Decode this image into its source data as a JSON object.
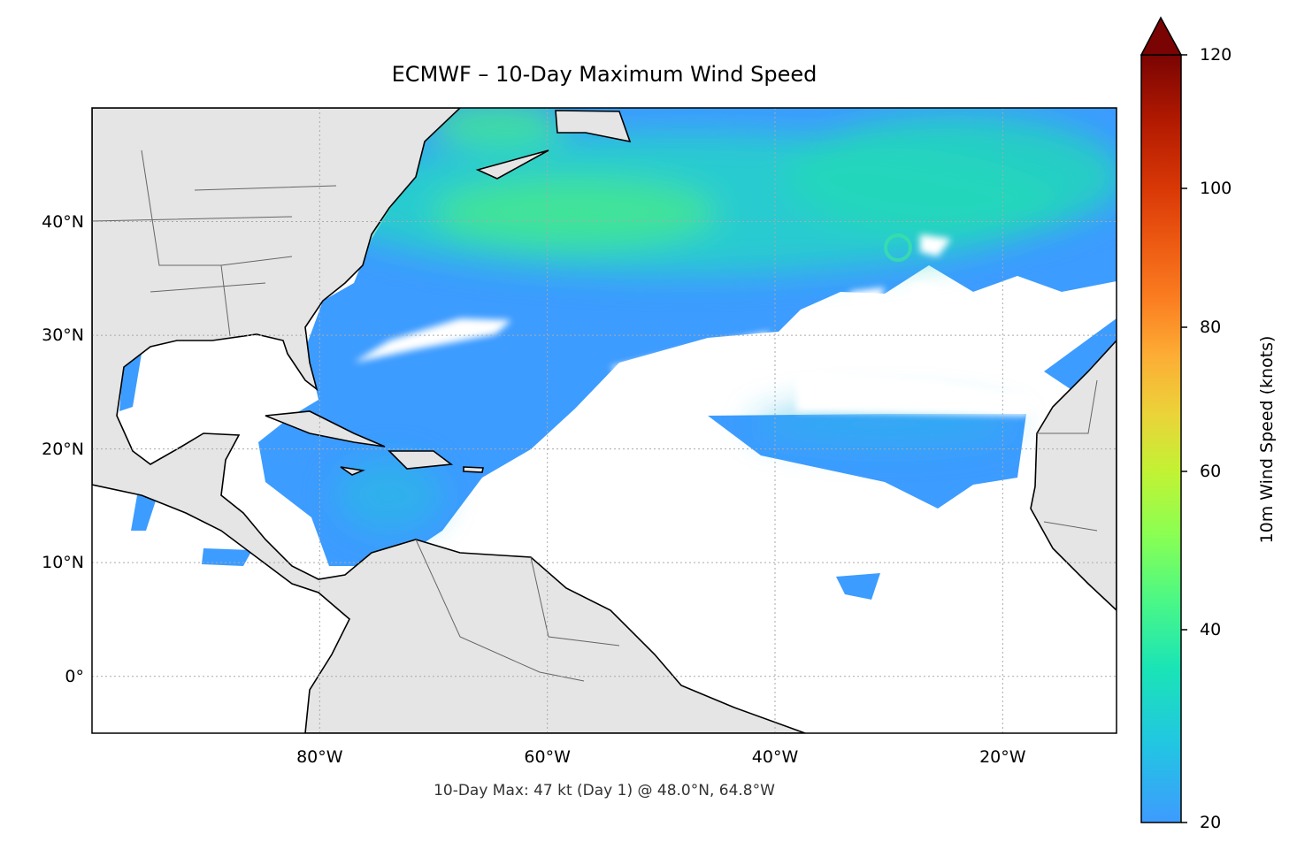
{
  "title": "ECMWF – 10-Day Maximum Wind Speed",
  "footer": "10-Day Max: 47 kt (Day 1) @ 48.0°N, 64.8°W",
  "map": {
    "extent_lon": [
      -100,
      -10
    ],
    "extent_lat": [
      -5,
      50
    ],
    "lat_labels": [
      {
        "lat": 40,
        "label": "40°N"
      },
      {
        "lat": 30,
        "label": "30°N"
      },
      {
        "lat": 20,
        "label": "20°N"
      },
      {
        "lat": 10,
        "label": "10°N"
      },
      {
        "lat": 0,
        "label": "0°"
      }
    ],
    "lon_labels": [
      {
        "lon": -80,
        "label": "80°W"
      },
      {
        "lon": -60,
        "label": "60°W"
      },
      {
        "lon": -40,
        "label": "40°W"
      },
      {
        "lon": -20,
        "label": "20°W"
      }
    ],
    "gridlines": true,
    "land_color": "#e5e5e5",
    "coast_color": "#000000"
  },
  "colorbar": {
    "label": "10m Wind Speed (knots)",
    "range": [
      20,
      120
    ],
    "extend": "max",
    "colormap": "turbo",
    "ticks": [
      {
        "value": 120,
        "label": "120"
      },
      {
        "value": 100,
        "label": "100"
      },
      {
        "value": 80,
        "label": "80"
      },
      {
        "value": 60,
        "label": "60"
      },
      {
        "value": 40,
        "label": "40"
      },
      {
        "value": 20,
        "label": "20"
      }
    ]
  }
}
